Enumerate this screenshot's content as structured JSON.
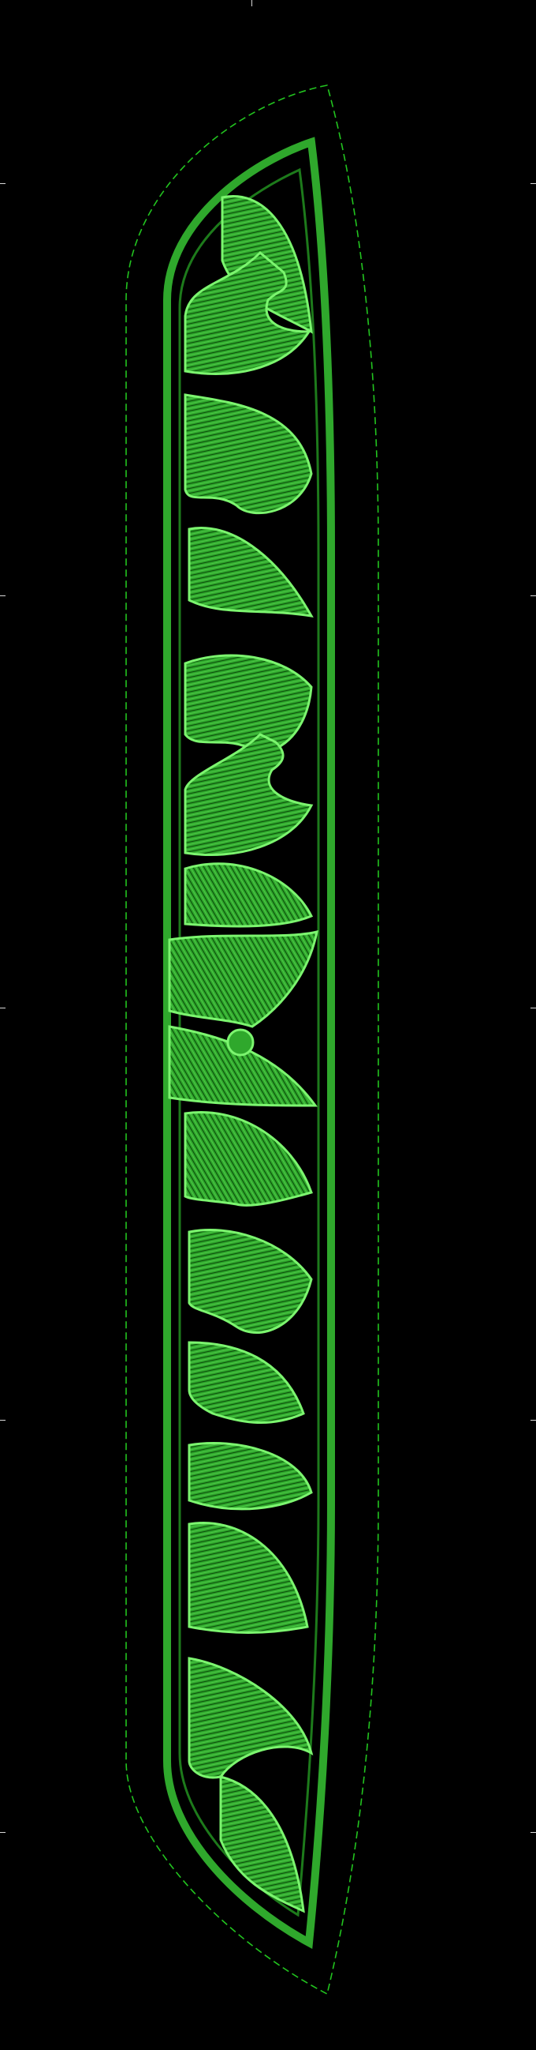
{
  "canvas": {
    "background": "#000000",
    "tick_color": "#d8d8d8"
  },
  "design": {
    "outline_color": "#22c41f",
    "fill_color": "#2fa82c",
    "stitch_dark": "#0b4a0a",
    "stitch_light": "#7cf56f",
    "motifs": [
      "leaf-motif",
      "curl-motif",
      "leaf-motif",
      "curl-motif",
      "leaf-motif",
      "curl-motif",
      "leaf-motif",
      "flower-motif",
      "leaf-motif",
      "curl-motif",
      "leaf-motif",
      "curl-motif",
      "leaf-motif",
      "curl-motif",
      "leaf-motif"
    ]
  }
}
